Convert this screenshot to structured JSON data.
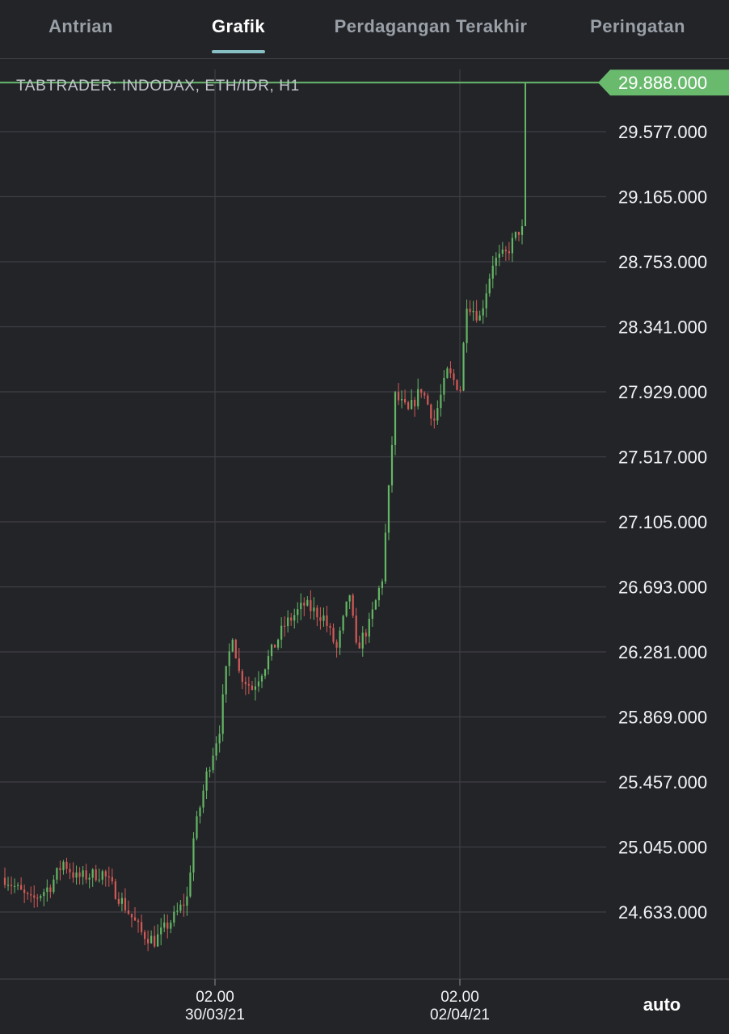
{
  "tabs": [
    {
      "label": "Antrian"
    },
    {
      "label": "Grafik"
    },
    {
      "label": "Perdagangan Terakhir"
    },
    {
      "label": "Peringatan"
    }
  ],
  "active_tab": 1,
  "auto_label": "auto",
  "colors": {
    "background": "#232428",
    "grid": "#3e3f44",
    "up": "#63b664",
    "down": "#d25a57",
    "last_price": "#6aba6e",
    "tab_underline": "#86bfc4"
  },
  "chart_data": {
    "type": "candlestick",
    "title": "TABTRADER: INDODAX, ETH/IDR, H1",
    "xlabel": "",
    "ylabel": "",
    "grid": true,
    "ylim": [
      24337000,
      30040000
    ],
    "y_ticks": [
      29577000,
      29165000,
      28753000,
      28341000,
      27929000,
      27517000,
      27105000,
      26693000,
      26281000,
      25869000,
      25457000,
      25045000,
      24633000
    ],
    "y_tick_labels": [
      "29.577.000",
      "29.165.000",
      "28.753.000",
      "28.341.000",
      "27.929.000",
      "27.517.000",
      "27.105.000",
      "26.693.000",
      "26.281.000",
      "25.869.000",
      "25.457.000",
      "25.045.000",
      "24.633.000"
    ],
    "x_ticks": [
      {
        "time": "02.00",
        "date": "30/03/21"
      },
      {
        "time": "02.00",
        "date": "02/04/21"
      }
    ],
    "last_price": 29888000,
    "last_price_label": "29.888.000",
    "visible_candles": 160
  }
}
